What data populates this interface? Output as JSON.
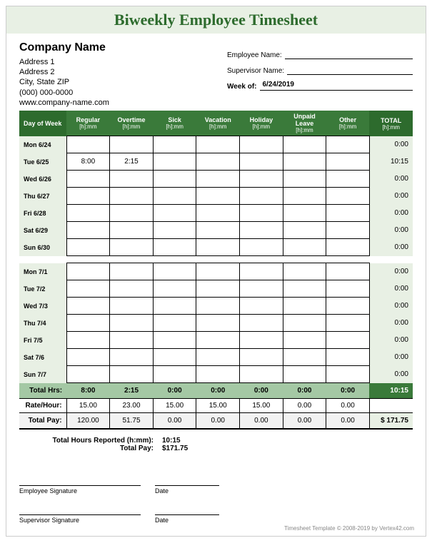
{
  "title": "Biweekly Employee Timesheet",
  "company": {
    "name": "Company Name",
    "addr1": "Address 1",
    "addr2": "Address 2",
    "citystate": "City, State  ZIP",
    "phone": "(000) 000-0000",
    "website": "www.company-name.com"
  },
  "meta": {
    "employee_label": "Employee Name:",
    "supervisor_label": "Supervisor Name:",
    "weekof_label": "Week of:",
    "weekof_value": "6/24/2019"
  },
  "columns": {
    "day": "Day of Week",
    "regular": "Regular",
    "overtime": "Overtime",
    "sick": "Sick",
    "vacation": "Vacation",
    "holiday": "Holiday",
    "unpaid": "Unpaid Leave",
    "other": "Other",
    "total": "TOTAL",
    "unit": "[h]:mm"
  },
  "week1": [
    {
      "day": "Mon 6/24",
      "reg": "",
      "ot": "",
      "sick": "",
      "vac": "",
      "hol": "",
      "unp": "",
      "oth": "",
      "tot": "0:00"
    },
    {
      "day": "Tue 6/25",
      "reg": "8:00",
      "ot": "2:15",
      "sick": "",
      "vac": "",
      "hol": "",
      "unp": "",
      "oth": "",
      "tot": "10:15"
    },
    {
      "day": "Wed 6/26",
      "reg": "",
      "ot": "",
      "sick": "",
      "vac": "",
      "hol": "",
      "unp": "",
      "oth": "",
      "tot": "0:00"
    },
    {
      "day": "Thu 6/27",
      "reg": "",
      "ot": "",
      "sick": "",
      "vac": "",
      "hol": "",
      "unp": "",
      "oth": "",
      "tot": "0:00"
    },
    {
      "day": "Fri 6/28",
      "reg": "",
      "ot": "",
      "sick": "",
      "vac": "",
      "hol": "",
      "unp": "",
      "oth": "",
      "tot": "0:00"
    },
    {
      "day": "Sat 6/29",
      "reg": "",
      "ot": "",
      "sick": "",
      "vac": "",
      "hol": "",
      "unp": "",
      "oth": "",
      "tot": "0:00"
    },
    {
      "day": "Sun 6/30",
      "reg": "",
      "ot": "",
      "sick": "",
      "vac": "",
      "hol": "",
      "unp": "",
      "oth": "",
      "tot": "0:00"
    }
  ],
  "week2": [
    {
      "day": "Mon 7/1",
      "reg": "",
      "ot": "",
      "sick": "",
      "vac": "",
      "hol": "",
      "unp": "",
      "oth": "",
      "tot": "0:00"
    },
    {
      "day": "Tue 7/2",
      "reg": "",
      "ot": "",
      "sick": "",
      "vac": "",
      "hol": "",
      "unp": "",
      "oth": "",
      "tot": "0:00"
    },
    {
      "day": "Wed 7/3",
      "reg": "",
      "ot": "",
      "sick": "",
      "vac": "",
      "hol": "",
      "unp": "",
      "oth": "",
      "tot": "0:00"
    },
    {
      "day": "Thu 7/4",
      "reg": "",
      "ot": "",
      "sick": "",
      "vac": "",
      "hol": "",
      "unp": "",
      "oth": "",
      "tot": "0:00"
    },
    {
      "day": "Fri 7/5",
      "reg": "",
      "ot": "",
      "sick": "",
      "vac": "",
      "hol": "",
      "unp": "",
      "oth": "",
      "tot": "0:00"
    },
    {
      "day": "Sat 7/6",
      "reg": "",
      "ot": "",
      "sick": "",
      "vac": "",
      "hol": "",
      "unp": "",
      "oth": "",
      "tot": "0:00"
    },
    {
      "day": "Sun 7/7",
      "reg": "",
      "ot": "",
      "sick": "",
      "vac": "",
      "hol": "",
      "unp": "",
      "oth": "",
      "tot": "0:00"
    }
  ],
  "totals": {
    "label": "Total Hrs:",
    "reg": "8:00",
    "ot": "2:15",
    "sick": "0:00",
    "vac": "0:00",
    "hol": "0:00",
    "unp": "0:00",
    "oth": "0:00",
    "tot": "10:15"
  },
  "rates": {
    "label": "Rate/Hour:",
    "reg": "15.00",
    "ot": "23.00",
    "sick": "15.00",
    "vac": "15.00",
    "hol": "15.00",
    "unp": "0.00",
    "oth": "0.00"
  },
  "pay": {
    "label": "Total Pay:",
    "reg": "120.00",
    "ot": "51.75",
    "sick": "0.00",
    "vac": "0.00",
    "hol": "0.00",
    "unp": "0.00",
    "oth": "0.00",
    "tot": "$   171.75"
  },
  "summary": {
    "hours_label": "Total Hours Reported (h:mm):",
    "hours_value": "10:15",
    "pay_label": "Total Pay:",
    "pay_value": "$171.75"
  },
  "signatures": {
    "emp": "Employee Signature",
    "sup": "Supervisor Signature",
    "date": "Date"
  },
  "footer": "Timesheet Template © 2008-2019 by Vertex42.com",
  "colors": {
    "header_bg": "#e8f0e4",
    "th_bg": "#3a7a3a",
    "th_dark": "#2d6b2d",
    "totals_bg": "#a4c8a4"
  }
}
